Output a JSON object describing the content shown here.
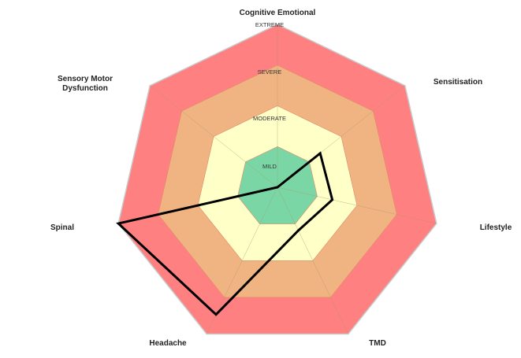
{
  "chart_data": {
    "type": "radar",
    "title": "",
    "axes": [
      "Cognitive Emotional",
      "Sensitisation",
      "Lifestyle",
      "TMD",
      "Headache",
      "Spinal",
      "Sensory Motor Dysfunction"
    ],
    "bands": [
      {
        "label": "MILD",
        "color": "#7bd6a6"
      },
      {
        "label": "MODERATE",
        "color": "#ffffc8"
      },
      {
        "label": "SEVERE",
        "color": "#f0b482"
      },
      {
        "label": "EXTREME",
        "color": "#ff8080"
      }
    ],
    "range": [
      0,
      4
    ],
    "grid": true,
    "series": [
      {
        "values": [
          0,
          1.34,
          1.38,
          1.18,
          3.47,
          4,
          0
        ],
        "color": "#000000"
      }
    ]
  }
}
